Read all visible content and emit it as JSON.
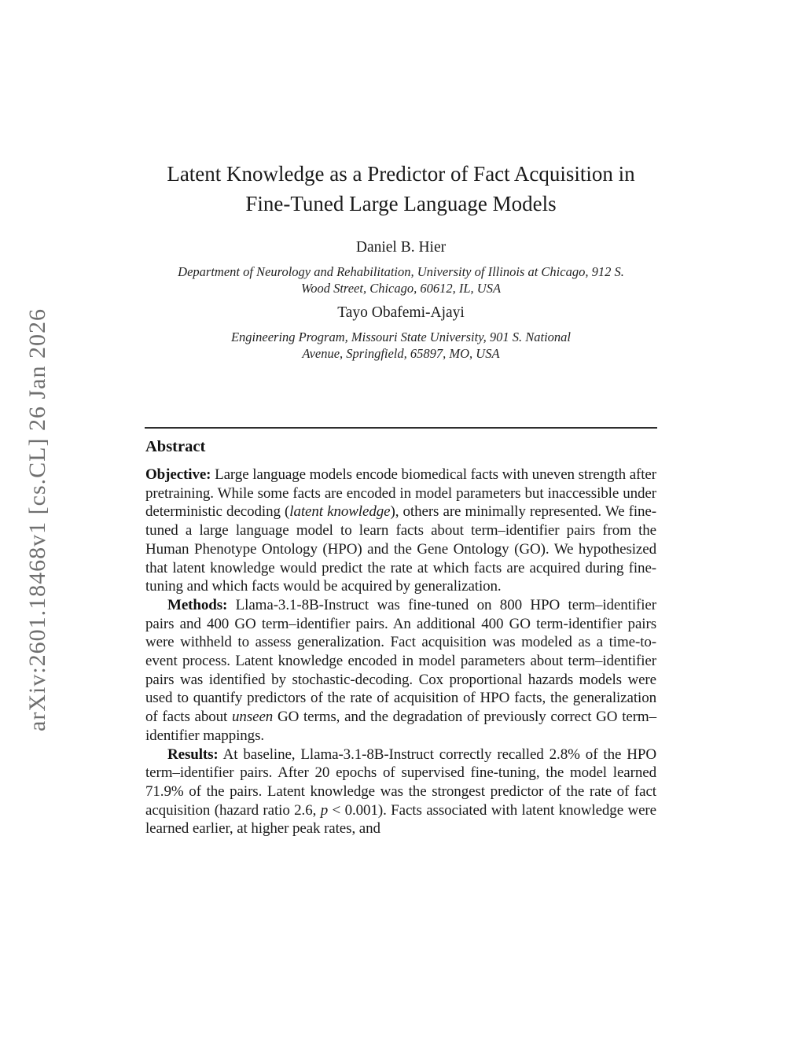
{
  "stamp": {
    "text": "arXiv:2601.18468v1 [cs.CL] 26 Jan 2026"
  },
  "header": {
    "title_line1": "Latent Knowledge as a Predictor of Fact Acquisition in",
    "title_line2": "Fine-Tuned Large Language Models"
  },
  "authors": [
    {
      "name": "Daniel B. Hier",
      "affil_line1": "Department of Neurology and Rehabilitation, University of Illinois at Chicago, 912 S.",
      "affil_line2": "Wood Street, Chicago, 60612, IL, USA"
    },
    {
      "name": "Tayo Obafemi-Ajayi",
      "affil_line1": "Engineering Program, Missouri State University, 901 S. National",
      "affil_line2": "Avenue, Springfield, 65897, MO, USA"
    }
  ],
  "abstract": {
    "heading": "Abstract",
    "objective": {
      "label": "Objective:",
      "text1": " Large language models encode biomedical facts with uneven strength after pretraining. While some facts are encoded in model parameters but inaccessible under deterministic decoding (",
      "italic1": "latent knowledge",
      "text2": "), others are minimally represented. We fine-tuned a large language model to learn facts about term–identifier pairs from the Human Phenotype Ontology (HPO) and the Gene Ontology (GO). We hypothesized that latent knowledge would predict the rate at which facts are acquired during fine-tuning and which facts would be acquired by generalization."
    },
    "methods": {
      "label": "Methods:",
      "text1": " Llama-3.1-8B-Instruct was fine-tuned on 800 HPO term–identifier pairs and 400 GO term–identifier pairs. An additional 400 GO term-identifier pairs were withheld to assess generalization. Fact acquisition was modeled as a time-to-event process. Latent knowledge encoded in model parameters about term–identifier pairs was identified by stochastic-decoding. Cox proportional hazards models were used to quantify predictors of the rate of acquisition of HPO facts, the generalization of facts about ",
      "italic1": "unseen",
      "text2": " GO terms, and the degradation of previously correct GO term–identifier mappings."
    },
    "results": {
      "label": "Results:",
      "text1": " At baseline, Llama-3.1-8B-Instruct correctly recalled 2.8% of the HPO term–identifier pairs. After 20 epochs of supervised fine-tuning, the model learned 71.9% of the pairs. Latent knowledge was the strongest predictor of the rate of fact acquisition (hazard ratio 2.6, ",
      "italic1": "p",
      "text2": " < 0.001). Facts associated with latent knowledge were learned earlier, at higher peak rates, and"
    }
  },
  "colors": {
    "text": "#1a1a1a",
    "stamp_gray": "#6f6f6f",
    "rule": "#2e2e2e",
    "background": "#ffffff"
  }
}
